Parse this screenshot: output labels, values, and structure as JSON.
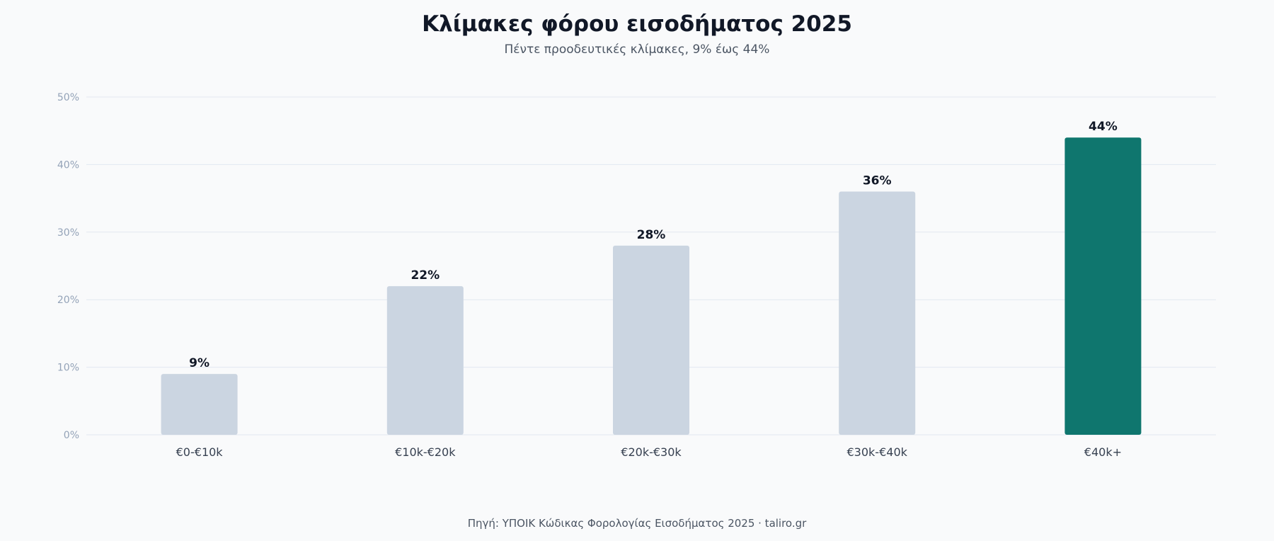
{
  "title": "Κλίμακες φόρου εισοδήματος 2025",
  "subtitle": "Πέντε προοδευτικές κλίμακες, 9% έως 44%",
  "source": "Πηγή: ΥΠΟΙΚ Κώδικας Φορολογίας Εισοδήματος 2025 · taliro.gr",
  "colors": {
    "bar_default": "#cbd5e1",
    "bar_highlight": "#0f766e",
    "grid": "#e2e8f0",
    "tick_text": "#94a3b8",
    "category_text": "#374151",
    "value_label": "#111827"
  },
  "chart_data": {
    "type": "bar",
    "categories": [
      "€0-€10k",
      "€10k-€20k",
      "€20k-€30k",
      "€30k-€40k",
      "€40k+"
    ],
    "values": [
      9,
      22,
      28,
      36,
      44
    ],
    "value_labels": [
      "9%",
      "22%",
      "28%",
      "36%",
      "44%"
    ],
    "highlight_index": 4,
    "ylim": [
      0,
      50
    ],
    "yticks": [
      0,
      10,
      20,
      30,
      40,
      50
    ],
    "ytick_labels": [
      "0%",
      "10%",
      "20%",
      "30%",
      "40%",
      "50%"
    ],
    "grid": true,
    "xlabel": "",
    "ylabel": ""
  }
}
